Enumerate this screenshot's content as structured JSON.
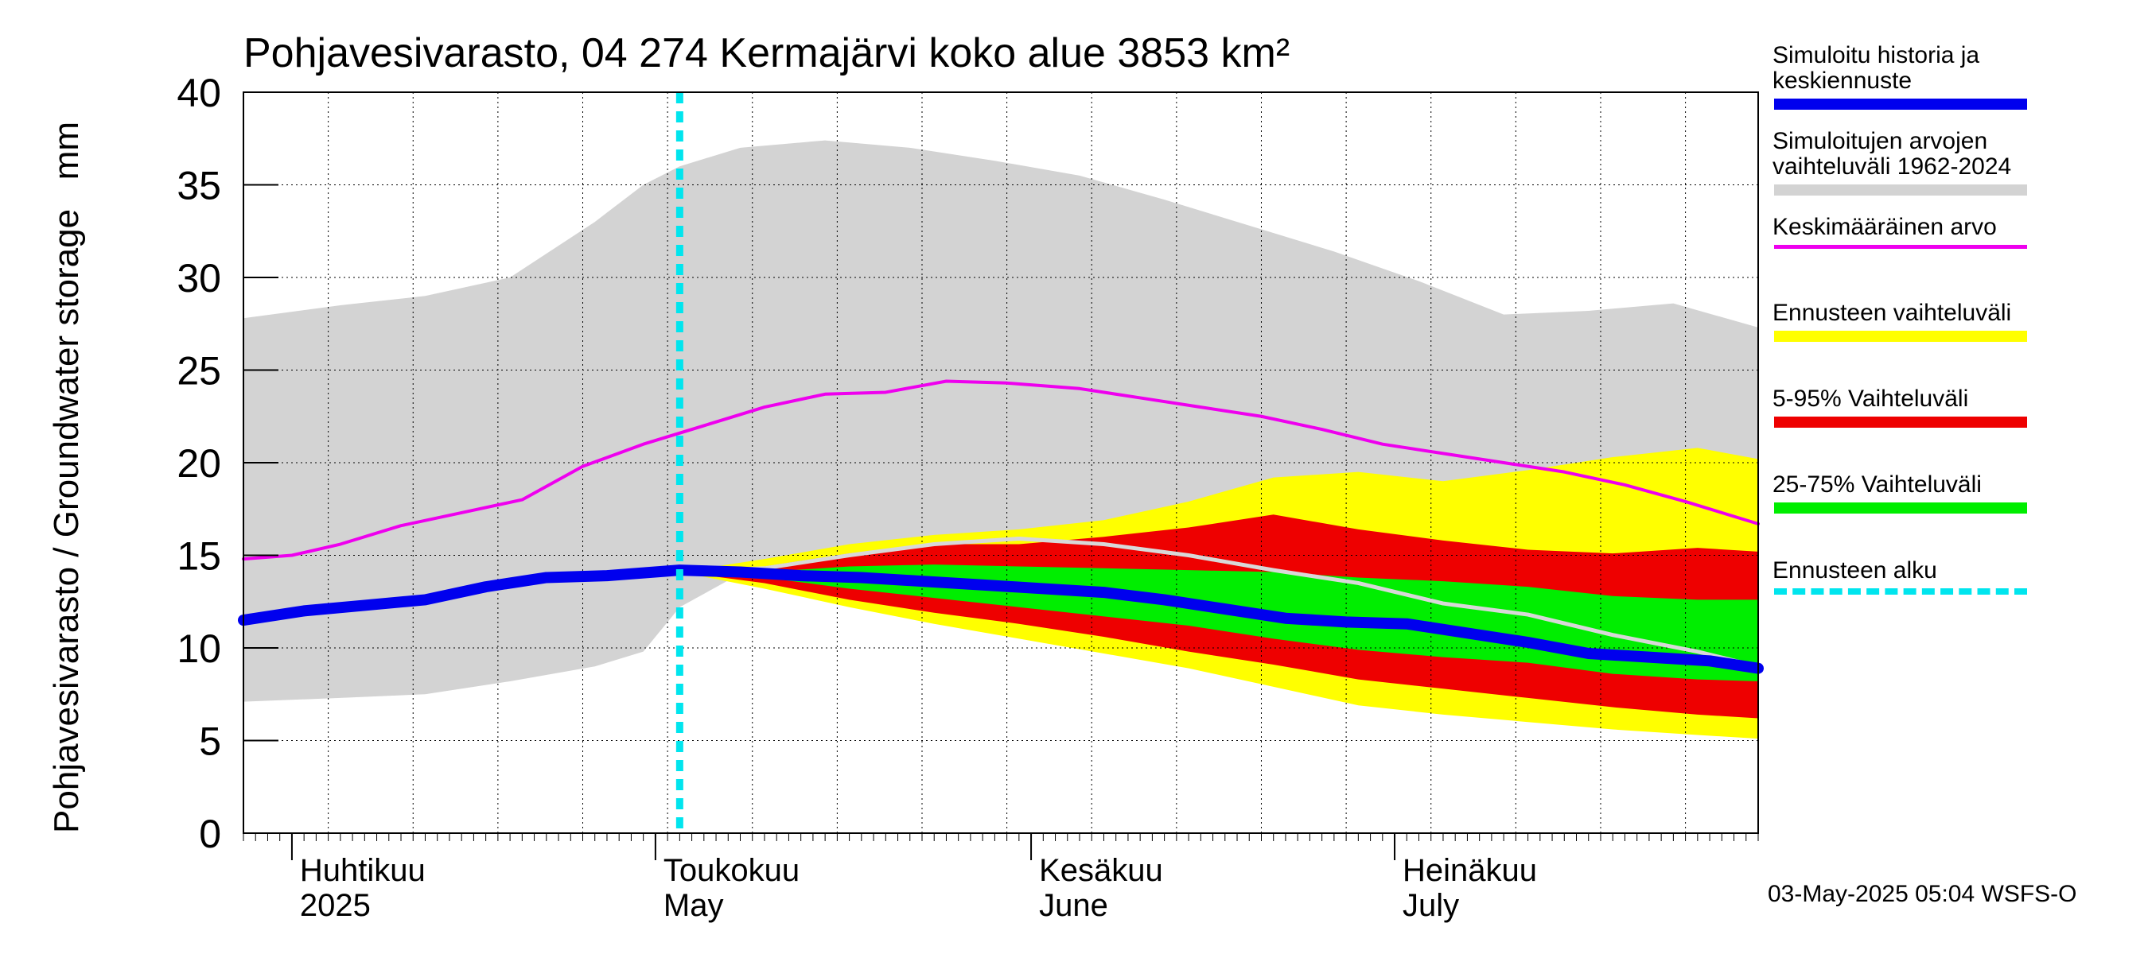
{
  "title": "Pohjavesivarasto, 04 274 Kermajärvi koko alue 3853 km²",
  "footer": "03-May-2025 05:04 WSFS-O",
  "colors": {
    "history_forecast": "#0000ee",
    "sim_range": "#d3d3d3",
    "mean": "#ee00ee",
    "forecast_range": "#ffff00",
    "p5_95": "#ee0000",
    "p25_75": "#00ee00",
    "forecast_start": "#00e5ee",
    "obs_line": "#d8d8d8"
  },
  "legend": [
    {
      "label": "Simuloitu historia ja\nkeskiennuste",
      "key": "history_forecast",
      "style": "solid",
      "thick": 14
    },
    {
      "label": "Simuloitujen arvojen\nvaihteluväli 1962-2024",
      "key": "sim_range",
      "style": "solid",
      "thick": 14
    },
    {
      "label": "Keskimääräinen arvo",
      "key": "mean",
      "style": "solid",
      "thick": 5
    },
    {
      "label": "Ennusteen vaihteluväli",
      "key": "forecast_range",
      "style": "solid",
      "thick": 14
    },
    {
      "label": "5-95% Vaihteluväli",
      "key": "p5_95",
      "style": "solid",
      "thick": 14
    },
    {
      "label": "25-75% Vaihteluväli",
      "key": "p25_75",
      "style": "solid",
      "thick": 14
    },
    {
      "label": "Ennusteen alku",
      "key": "forecast_start",
      "style": "dotted",
      "thick": 8
    }
  ],
  "chart_data": {
    "type": "area",
    "title": "Pohjavesivarasto, 04 274 Kermajärvi koko alue 3853 km²",
    "ylabel": "Pohjavesivarasto / Groundwater storage   mm",
    "ylim": [
      0,
      40
    ],
    "yticks": [
      0,
      5,
      10,
      15,
      20,
      25,
      30,
      35,
      40
    ],
    "xlim": [
      "2025-03-28",
      "2025-07-31"
    ],
    "month_labels": [
      {
        "line1": "Huhtikuu",
        "line2": "2025",
        "date": "2025-04-01"
      },
      {
        "line1": "Toukokuu",
        "line2": "May",
        "date": "2025-05-01"
      },
      {
        "line1": "Kesäkuu",
        "line2": "June",
        "date": "2025-06-01"
      },
      {
        "line1": "Heinäkuu",
        "line2": "July",
        "date": "2025-07-01"
      }
    ],
    "forecast_start": "2025-05-03",
    "series": [
      {
        "name": "Simuloitujen arvojen vaihteluväli 1962-2024",
        "kind": "band",
        "x": [
          "2025-03-28",
          "2025-04-05",
          "2025-04-12",
          "2025-04-19",
          "2025-04-26",
          "2025-04-30",
          "2025-05-03",
          "2025-05-08",
          "2025-05-15",
          "2025-05-22",
          "2025-05-29",
          "2025-06-05",
          "2025-06-12",
          "2025-06-19",
          "2025-06-26",
          "2025-07-03",
          "2025-07-10",
          "2025-07-17",
          "2025-07-24",
          "2025-07-31"
        ],
        "lower": [
          7.1,
          7.3,
          7.5,
          8.2,
          9.0,
          9.8,
          12.2,
          14.0,
          14.3,
          14.1,
          14.0,
          13.9,
          13.7,
          13.5,
          13.4,
          13.3,
          13.2,
          13.1,
          13.0,
          12.9
        ],
        "upper": [
          27.8,
          28.5,
          29.0,
          30.0,
          33.0,
          35.0,
          36.0,
          37.0,
          37.4,
          37.0,
          36.3,
          35.5,
          34.2,
          32.8,
          31.4,
          29.8,
          28.0,
          28.2,
          28.6,
          27.3
        ]
      },
      {
        "name": "Ennusteen vaihteluväli",
        "kind": "band",
        "x": [
          "2025-05-03",
          "2025-05-10",
          "2025-05-17",
          "2025-05-24",
          "2025-05-31",
          "2025-06-07",
          "2025-06-14",
          "2025-06-21",
          "2025-06-28",
          "2025-07-05",
          "2025-07-12",
          "2025-07-19",
          "2025-07-26",
          "2025-07-31"
        ],
        "lower": [
          14.1,
          13.2,
          12.2,
          11.3,
          10.5,
          9.7,
          8.9,
          7.9,
          6.9,
          6.4,
          6.0,
          5.6,
          5.3,
          5.1
        ],
        "upper": [
          14.1,
          14.8,
          15.6,
          16.1,
          16.4,
          16.9,
          17.9,
          19.2,
          19.5,
          19.0,
          19.6,
          20.3,
          20.8,
          20.2
        ]
      },
      {
        "name": "5-95% Vaihteluväli",
        "kind": "band",
        "x": [
          "2025-05-03",
          "2025-05-10",
          "2025-05-17",
          "2025-05-24",
          "2025-05-31",
          "2025-06-07",
          "2025-06-14",
          "2025-06-21",
          "2025-06-28",
          "2025-07-05",
          "2025-07-12",
          "2025-07-19",
          "2025-07-26",
          "2025-07-31"
        ],
        "lower": [
          14.1,
          13.5,
          12.6,
          11.9,
          11.3,
          10.6,
          9.8,
          9.1,
          8.3,
          7.8,
          7.3,
          6.8,
          6.4,
          6.2
        ],
        "upper": [
          14.1,
          14.4,
          15.1,
          15.6,
          15.6,
          16.0,
          16.5,
          17.2,
          16.4,
          15.8,
          15.3,
          15.1,
          15.4,
          15.2
        ]
      },
      {
        "name": "25-75% Vaihteluväli",
        "kind": "band",
        "x": [
          "2025-05-03",
          "2025-05-10",
          "2025-05-17",
          "2025-05-24",
          "2025-05-31",
          "2025-06-07",
          "2025-06-14",
          "2025-06-21",
          "2025-06-28",
          "2025-07-05",
          "2025-07-12",
          "2025-07-19",
          "2025-07-26",
          "2025-07-31"
        ],
        "lower": [
          14.1,
          13.8,
          13.2,
          12.7,
          12.2,
          11.7,
          11.2,
          10.5,
          9.9,
          9.5,
          9.2,
          8.6,
          8.3,
          8.2
        ],
        "upper": [
          14.1,
          14.1,
          14.4,
          14.5,
          14.4,
          14.3,
          14.2,
          14.1,
          13.8,
          13.6,
          13.3,
          12.8,
          12.6,
          12.6
        ]
      },
      {
        "name": "Keskimääräinen arvo",
        "kind": "line",
        "x": [
          "2025-03-28",
          "2025-04-01",
          "2025-04-05",
          "2025-04-10",
          "2025-04-15",
          "2025-04-20",
          "2025-04-25",
          "2025-04-30",
          "2025-05-05",
          "2025-05-10",
          "2025-05-15",
          "2025-05-20",
          "2025-05-25",
          "2025-05-30",
          "2025-06-05",
          "2025-06-10",
          "2025-06-15",
          "2025-06-20",
          "2025-06-25",
          "2025-06-30",
          "2025-07-05",
          "2025-07-10",
          "2025-07-15",
          "2025-07-20",
          "2025-07-25",
          "2025-07-31"
        ],
        "values": [
          14.8,
          15.0,
          15.6,
          16.6,
          17.3,
          18.0,
          19.8,
          21.0,
          22.0,
          23.0,
          23.7,
          23.8,
          24.4,
          24.3,
          24.0,
          23.5,
          23.0,
          22.5,
          21.8,
          21.0,
          20.5,
          20.0,
          19.5,
          18.8,
          17.9,
          16.7
        ]
      },
      {
        "name": "obs_line",
        "kind": "line",
        "x": [
          "2025-05-03",
          "2025-05-10",
          "2025-05-17",
          "2025-05-24",
          "2025-05-31",
          "2025-06-07",
          "2025-06-14",
          "2025-06-21",
          "2025-06-28",
          "2025-07-05",
          "2025-07-12",
          "2025-07-19",
          "2025-07-26",
          "2025-07-31"
        ],
        "values": [
          14.1,
          14.3,
          15.0,
          15.6,
          15.9,
          15.6,
          15.0,
          14.2,
          13.5,
          12.4,
          11.8,
          10.7,
          9.8,
          9.0
        ]
      },
      {
        "name": "Simuloitu historia ja keskiennuste",
        "kind": "line",
        "x": [
          "2025-03-28",
          "2025-04-02",
          "2025-04-07",
          "2025-04-12",
          "2025-04-17",
          "2025-04-22",
          "2025-04-27",
          "2025-05-03",
          "2025-05-08",
          "2025-05-13",
          "2025-05-18",
          "2025-05-23",
          "2025-05-28",
          "2025-06-02",
          "2025-06-07",
          "2025-06-12",
          "2025-06-17",
          "2025-06-22",
          "2025-06-27",
          "2025-07-02",
          "2025-07-07",
          "2025-07-12",
          "2025-07-17",
          "2025-07-22",
          "2025-07-27",
          "2025-07-31"
        ],
        "values": [
          11.5,
          12.0,
          12.3,
          12.6,
          13.3,
          13.8,
          13.9,
          14.2,
          14.1,
          13.9,
          13.8,
          13.6,
          13.4,
          13.2,
          13.0,
          12.6,
          12.1,
          11.6,
          11.4,
          11.3,
          10.8,
          10.3,
          9.7,
          9.5,
          9.3,
          8.9
        ]
      }
    ]
  }
}
